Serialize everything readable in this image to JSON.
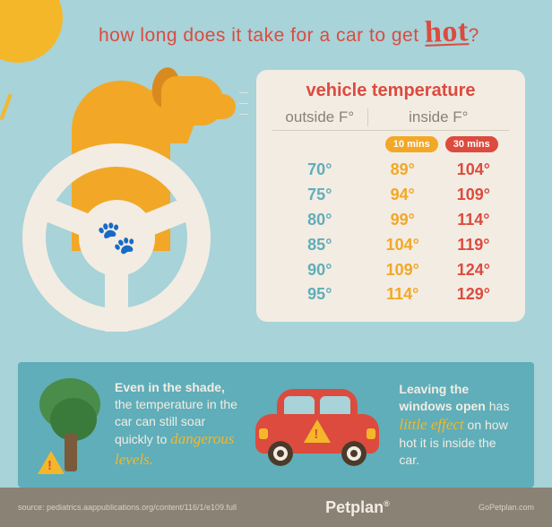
{
  "colors": {
    "bg": "#a7d3d9",
    "panel": "#f3ece3",
    "red": "#dc4b3e",
    "orange": "#f2a826",
    "sun": "#f5b72a",
    "teal": "#5faeb9",
    "outside_text": "#5faeb9",
    "header_text": "#8a8275",
    "footer_bg": "#8a8275"
  },
  "headline": {
    "prefix": "how long does it take for a car to get ",
    "hot": "hot",
    "suffix": "?"
  },
  "table": {
    "type": "table",
    "title": "vehicle temperature",
    "col_outside": "outside F°",
    "col_inside": "inside F°",
    "pill_10": "10 mins",
    "pill_30": "30 mins",
    "title_fontsize": 20,
    "cell_fontsize": 18,
    "rows": [
      {
        "outside": "70°",
        "t10": "89°",
        "t30": "104°"
      },
      {
        "outside": "75°",
        "t10": "94°",
        "t30": "109°"
      },
      {
        "outside": "80°",
        "t10": "99°",
        "t30": "114°"
      },
      {
        "outside": "85°",
        "t10": "104°",
        "t30": "119°"
      },
      {
        "outside": "90°",
        "t10": "109°",
        "t30": "124°"
      },
      {
        "outside": "95°",
        "t10": "114°",
        "t30": "129°"
      }
    ]
  },
  "callouts": {
    "shade_bold": "Even in the shade,",
    "shade_rest1": "the temperature in the car can still soar quickly to",
    "shade_accent": "dangerous levels.",
    "windows_bold": "Leaving the windows open",
    "windows_rest1": "has",
    "windows_accent": "little effect",
    "windows_rest2": "on how hot it is inside the car."
  },
  "footer": {
    "source": "source: pediatrics.aappublications.org/content/116/1/e109.full",
    "brand": "Petplan",
    "url": "GoPetplan.com"
  }
}
